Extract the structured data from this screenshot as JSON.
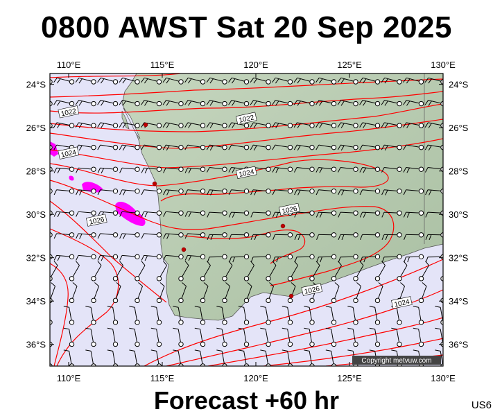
{
  "title": "0800 AWST Sat 20 Sep 2025",
  "subtitle": "Forecast +60 hr",
  "chart_code": "US6",
  "copyright": "Copyright metvuw.com",
  "colors": {
    "sea": "#e4e4f8",
    "land": "#b9cdb1",
    "isobar": "#ff0000",
    "high_wind": "#ff00ff",
    "town": "#c00000"
  },
  "map": {
    "lon_range": [
      109,
      130
    ],
    "lat_range": [
      -37,
      -23.5
    ],
    "lon_ticks": [
      {
        "value": 110,
        "label": "110°E"
      },
      {
        "value": 115,
        "label": "115°E"
      },
      {
        "value": 120,
        "label": "120°E"
      },
      {
        "value": 125,
        "label": "125°E"
      },
      {
        "value": 130,
        "label": "130°E"
      }
    ],
    "lat_ticks": [
      {
        "value": -24,
        "label": "24°S"
      },
      {
        "value": -26,
        "label": "26°S"
      },
      {
        "value": -28,
        "label": "28°S"
      },
      {
        "value": -30,
        "label": "30°S"
      },
      {
        "value": -32,
        "label": "32°S"
      },
      {
        "value": -34,
        "label": "34°S"
      },
      {
        "value": -36,
        "label": "36°S"
      }
    ],
    "isobar_labels": [
      {
        "text": "1022",
        "lon": 110.0,
        "lat": -25.3
      },
      {
        "text": "1024",
        "lon": 110.0,
        "lat": -27.2
      },
      {
        "text": "1026",
        "lon": 111.5,
        "lat": -30.3
      },
      {
        "text": "1022",
        "lon": 119.5,
        "lat": -25.6
      },
      {
        "text": "1024",
        "lon": 119.5,
        "lat": -28.1
      },
      {
        "text": "1026",
        "lon": 121.8,
        "lat": -29.8
      },
      {
        "text": "1026",
        "lon": 123.0,
        "lat": -33.5
      },
      {
        "text": "1024",
        "lon": 127.8,
        "lat": -34.1
      }
    ]
  }
}
